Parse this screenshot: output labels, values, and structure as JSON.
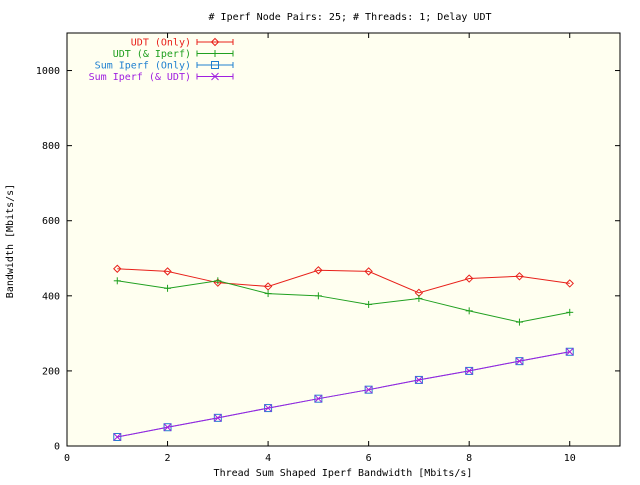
{
  "chart_data": {
    "type": "line",
    "title": "# Iperf Node Pairs: 25; # Threads: 1; Delay UDT",
    "xlabel": "Thread Sum Shaped Iperf Bandwidth [Mbits/s]",
    "ylabel": "Bandwidth [Mbits/s]",
    "xlim": [
      0,
      11
    ],
    "ylim": [
      0,
      1100
    ],
    "xticks": [
      0,
      2,
      4,
      6,
      8,
      10
    ],
    "yticks": [
      0,
      200,
      400,
      600,
      800,
      1000
    ],
    "grid": false,
    "legend_position": "top-left",
    "background": "#fffff0",
    "x": [
      1,
      2,
      3,
      4,
      5,
      6,
      7,
      8,
      9,
      10
    ],
    "series": [
      {
        "name": "UDT (Only)",
        "color": "#e8201a",
        "marker": "diamond",
        "values": [
          472,
          465,
          435,
          425,
          468,
          465,
          408,
          446,
          452,
          433
        ]
      },
      {
        "name": "UDT (& Iperf)",
        "color": "#20a020",
        "marker": "plus",
        "values": [
          440,
          420,
          440,
          406,
          400,
          377,
          393,
          360,
          330,
          356
        ]
      },
      {
        "name": "Sum Iperf (Only)",
        "color": "#2080d0",
        "marker": "square",
        "values": [
          24,
          50,
          75,
          101,
          126,
          150,
          176,
          200,
          226,
          251
        ]
      },
      {
        "name": "Sum Iperf (& UDT)",
        "color": "#a020e0",
        "marker": "x",
        "values": [
          24,
          50,
          75,
          101,
          126,
          150,
          176,
          200,
          226,
          251
        ]
      }
    ]
  }
}
